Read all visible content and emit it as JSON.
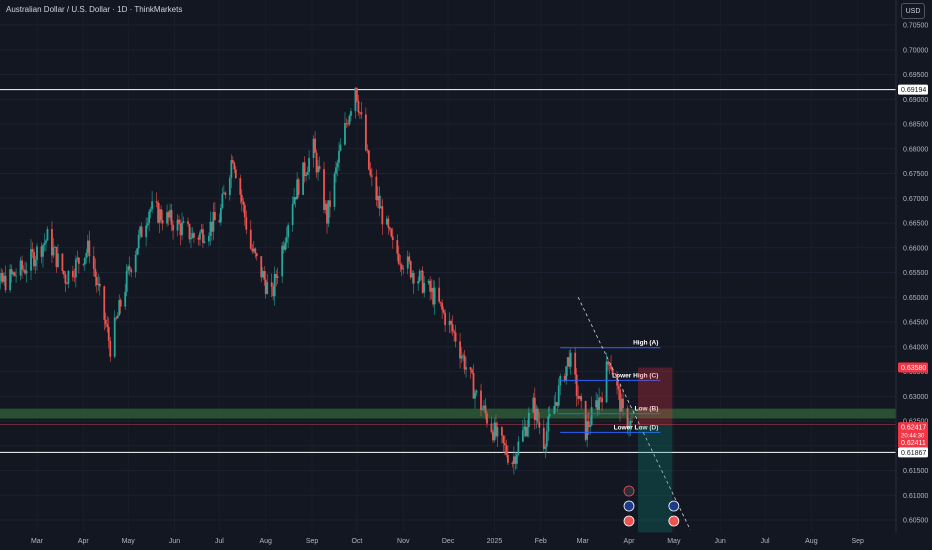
{
  "header": {
    "symbol_title": "Australian Dollar / U.S. Dollar · 1D · ThinkMarkets",
    "currency": "USD"
  },
  "colors": {
    "background": "#131722",
    "bull": "#26a69a",
    "bear": "#ef5350",
    "zone": "#2e5a36",
    "blue_line": "#2962ff",
    "price_badge": "#f23645"
  },
  "chart_data": {
    "type": "candlestick",
    "y_axis": {
      "min": 0.6025,
      "max": 0.7085,
      "ticks": [
        "0.70500",
        "0.70000",
        "0.69500",
        "0.69000",
        "0.68500",
        "0.68000",
        "0.67500",
        "0.67000",
        "0.66500",
        "0.66000",
        "0.65500",
        "0.65000",
        "0.64500",
        "0.64000",
        "0.63500",
        "0.63000",
        "0.62500",
        "0.62000",
        "0.61500",
        "0.61000",
        "0.60500"
      ]
    },
    "x_axis": {
      "labels": [
        "Mar",
        "Apr",
        "May",
        "Jun",
        "Jul",
        "Aug",
        "Sep",
        "Oct",
        "Nov",
        "Dec",
        "2025",
        "Feb",
        "Mar",
        "Apr",
        "May",
        "Jun",
        "Jul",
        "Aug",
        "Sep"
      ]
    },
    "approx_close_path": [
      {
        "date": "2024-01-20",
        "price": 0.6551
      },
      {
        "date": "2024-02-05",
        "price": 0.6525
      },
      {
        "date": "2024-02-22",
        "price": 0.656
      },
      {
        "date": "2024-03-08",
        "price": 0.662
      },
      {
        "date": "2024-03-20",
        "price": 0.654
      },
      {
        "date": "2024-04-05",
        "price": 0.66
      },
      {
        "date": "2024-04-19",
        "price": 0.64
      },
      {
        "date": "2024-05-02",
        "price": 0.656
      },
      {
        "date": "2024-05-15",
        "price": 0.668
      },
      {
        "date": "2024-06-01",
        "price": 0.665
      },
      {
        "date": "2024-06-15",
        "price": 0.662
      },
      {
        "date": "2024-07-01",
        "price": 0.666
      },
      {
        "date": "2024-07-10",
        "price": 0.679
      },
      {
        "date": "2024-07-22",
        "price": 0.66
      },
      {
        "date": "2024-08-05",
        "price": 0.65
      },
      {
        "date": "2024-08-19",
        "price": 0.67
      },
      {
        "date": "2024-09-02",
        "price": 0.68
      },
      {
        "date": "2024-09-11",
        "price": 0.666
      },
      {
        "date": "2024-09-20",
        "price": 0.68
      },
      {
        "date": "2024-09-30",
        "price": 0.693
      },
      {
        "date": "2024-10-10",
        "price": 0.674
      },
      {
        "date": "2024-10-25",
        "price": 0.66
      },
      {
        "date": "2024-11-08",
        "price": 0.655
      },
      {
        "date": "2024-11-22",
        "price": 0.65
      },
      {
        "date": "2024-12-06",
        "price": 0.642
      },
      {
        "date": "2024-12-20",
        "price": 0.63
      },
      {
        "date": "2025-01-02",
        "price": 0.622
      },
      {
        "date": "2025-01-13",
        "price": 0.617
      },
      {
        "date": "2025-01-27",
        "price": 0.628
      },
      {
        "date": "2025-02-03",
        "price": 0.621
      },
      {
        "date": "2025-02-20",
        "price": 0.638
      },
      {
        "date": "2025-03-03",
        "price": 0.623
      },
      {
        "date": "2025-03-14",
        "price": 0.631
      },
      {
        "date": "2025-03-19",
        "price": 0.638
      },
      {
        "date": "2025-03-28",
        "price": 0.626
      },
      {
        "date": "2025-04-03",
        "price": 0.6241
      }
    ],
    "horizontal_lines": [
      {
        "price": 0.69194,
        "label": "0.69194"
      },
      {
        "price": 0.61867,
        "label": "0.61867"
      }
    ],
    "support_zone": {
      "from": 0.6255,
      "to": 0.6275
    },
    "structure_labels": [
      {
        "label": "High (A)",
        "price": 0.6398
      },
      {
        "label": "Lower High (C)",
        "price": 0.6332
      },
      {
        "label": "Low (B)",
        "price": 0.6265
      },
      {
        "label": "Lower Low (D)",
        "price": 0.6227
      }
    ],
    "position": {
      "entry": 0.6241,
      "stop": 0.6358,
      "target": 0.6025
    },
    "price_badges": [
      {
        "label": "0.63580",
        "color": "#f23645"
      },
      {
        "label": "0.62417",
        "sub": "20:44:30",
        "color": "#f23645"
      },
      {
        "label": "0.62411",
        "color": "#f23645"
      },
      {
        "label": "0.61867",
        "color": "#ffffff"
      },
      {
        "label": "0.69194",
        "color": "#ffffff"
      }
    ]
  }
}
